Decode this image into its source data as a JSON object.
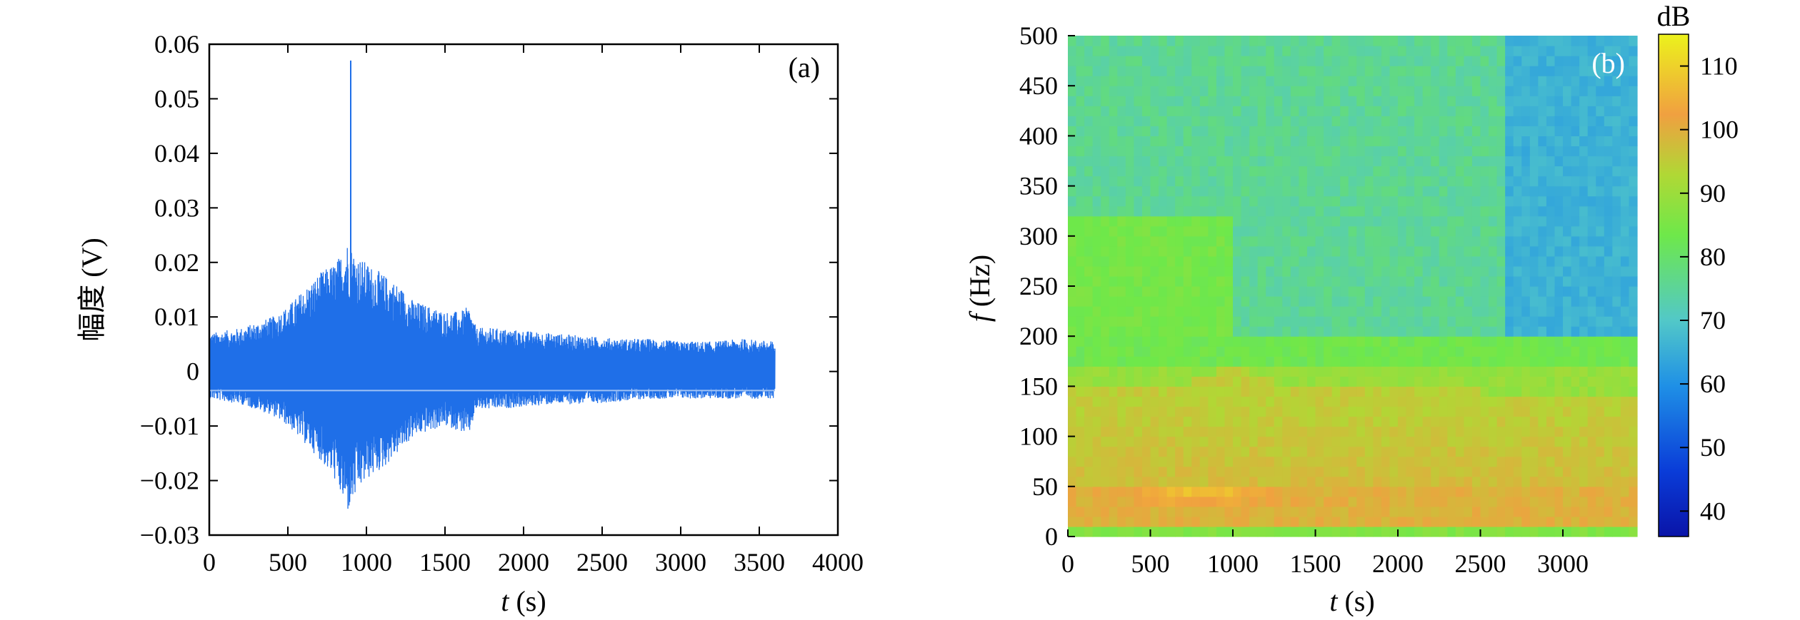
{
  "chart_data": [
    {
      "type": "line",
      "panel_label": "(a)",
      "xlabel_var": "t",
      "xlabel_unit": " (s)",
      "ylabel": "幅度 (V)",
      "xlim": [
        0,
        4000
      ],
      "ylim": [
        -0.03,
        0.06
      ],
      "x_ticks": [
        "0",
        "500",
        "1000",
        "1500",
        "2000",
        "2500",
        "3000",
        "3500",
        "4000"
      ],
      "y_ticks": [
        "−0.03",
        "−0.02",
        "−0.01",
        "0",
        "0.01",
        "0.02",
        "0.03",
        "0.04",
        "0.05",
        "0.06"
      ],
      "series_color": "#1f6fe8",
      "envelope": {
        "t": [
          0,
          100,
          200,
          300,
          400,
          500,
          600,
          700,
          800,
          850,
          880,
          900,
          950,
          1000,
          1100,
          1200,
          1300,
          1400,
          1500,
          1600,
          1650,
          1700,
          1800,
          2000,
          2200,
          2400,
          2600,
          2800,
          3000,
          3200,
          3400,
          3600
        ],
        "upper": [
          0.007,
          0.0075,
          0.008,
          0.009,
          0.01,
          0.012,
          0.015,
          0.018,
          0.02,
          0.022,
          0.024,
          0.023,
          0.021,
          0.02,
          0.018,
          0.016,
          0.013,
          0.012,
          0.011,
          0.011,
          0.012,
          0.008,
          0.008,
          0.0075,
          0.007,
          0.0065,
          0.006,
          0.006,
          0.0055,
          0.0055,
          0.006,
          0.0055
        ],
        "lower": [
          -0.005,
          -0.0055,
          -0.006,
          -0.007,
          -0.008,
          -0.01,
          -0.013,
          -0.016,
          -0.02,
          -0.024,
          -0.026,
          -0.025,
          -0.022,
          -0.02,
          -0.018,
          -0.015,
          -0.012,
          -0.011,
          -0.01,
          -0.011,
          -0.012,
          -0.007,
          -0.007,
          -0.0065,
          -0.006,
          -0.006,
          -0.0055,
          -0.005,
          -0.005,
          -0.005,
          -0.005,
          -0.005
        ]
      },
      "peak": {
        "t": 900,
        "value": 0.057
      }
    },
    {
      "type": "heatmap",
      "panel_label": "(b)",
      "xlabel_var": "t",
      "xlabel_unit": " (s)",
      "ylabel_var": "f",
      "ylabel_unit": " (Hz)",
      "xlim": [
        0,
        3450
      ],
      "ylim": [
        0,
        500
      ],
      "x_ticks": [
        "0",
        "500",
        "1000",
        "1500",
        "2000",
        "2500",
        "3000"
      ],
      "y_ticks": [
        "0",
        "50",
        "100",
        "150",
        "200",
        "250",
        "300",
        "350",
        "400",
        "450",
        "500"
      ],
      "colorbar": {
        "title": "dB",
        "range": [
          36,
          115
        ],
        "ticks": [
          "40",
          "50",
          "60",
          "70",
          "80",
          "90",
          "100",
          "110"
        ]
      },
      "level_summary_db": {
        "band_0_10Hz": 85,
        "band_10_50Hz": 99,
        "band_30_50Hz_peak_near_t_800s": 110,
        "band_50_120Hz": 97,
        "band_120_170Hz_transition": 88,
        "band_200_320Hz_t_0_1000s": 83,
        "band_above_200Hz_general": 75,
        "band_above_200Hz_t_after_2650s": 66
      }
    }
  ]
}
